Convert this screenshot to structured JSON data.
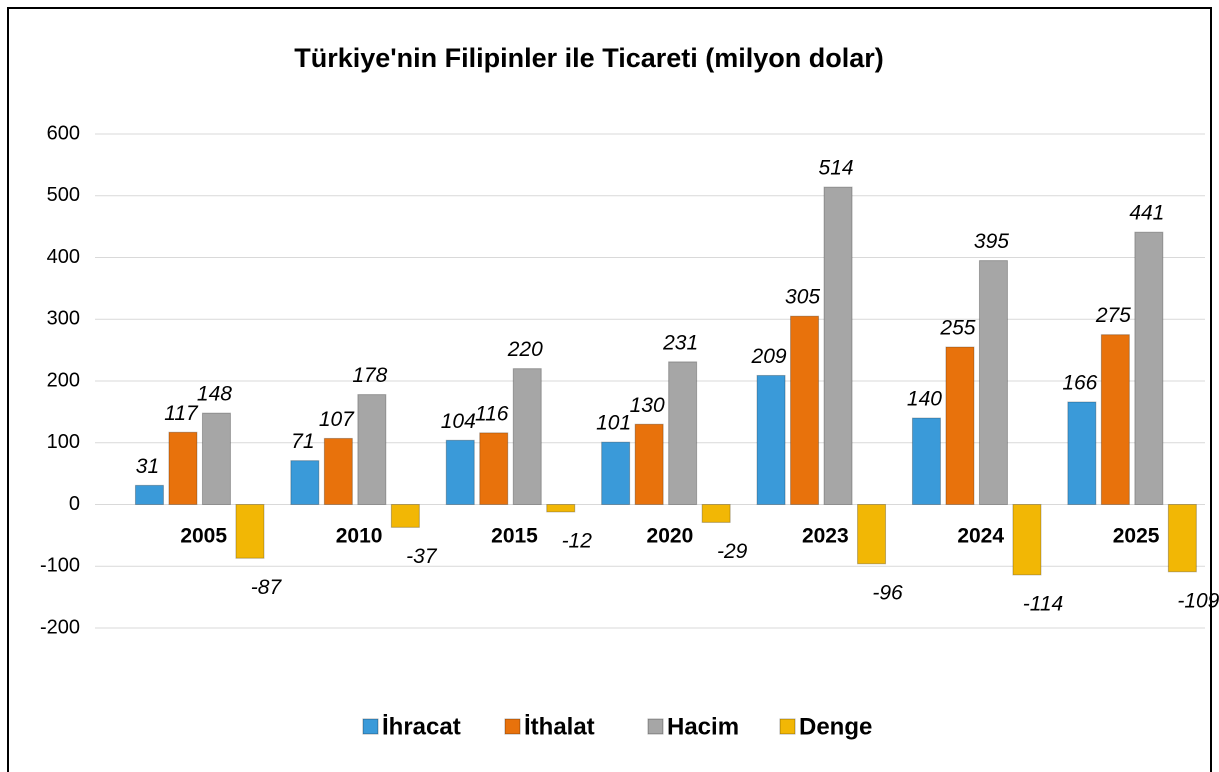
{
  "chart_data": {
    "type": "bar",
    "title": "Türkiye'nin Filipinler ile Ticareti (milyon dolar)",
    "categories": [
      "2005",
      "2010",
      "2015",
      "2020",
      "2023",
      "2024",
      "2025"
    ],
    "series": [
      {
        "name": "İhracat",
        "color": "#3a9ad9",
        "values": [
          31,
          71,
          104,
          101,
          209,
          140,
          166
        ]
      },
      {
        "name": "İthalat",
        "color": "#e8720c",
        "values": [
          117,
          107,
          116,
          130,
          305,
          255,
          275
        ]
      },
      {
        "name": "Hacim",
        "color": "#a6a6a6",
        "values": [
          148,
          178,
          220,
          231,
          514,
          395,
          441
        ]
      },
      {
        "name": "Denge",
        "color": "#f2b705",
        "values": [
          -87,
          -37,
          -12,
          -29,
          -96,
          -114,
          -109
        ]
      }
    ],
    "ylim": [
      -200,
      600
    ],
    "yticks": [
      -200,
      -100,
      0,
      100,
      200,
      300,
      400,
      500,
      600
    ],
    "grid": true,
    "legend": "bottom"
  }
}
